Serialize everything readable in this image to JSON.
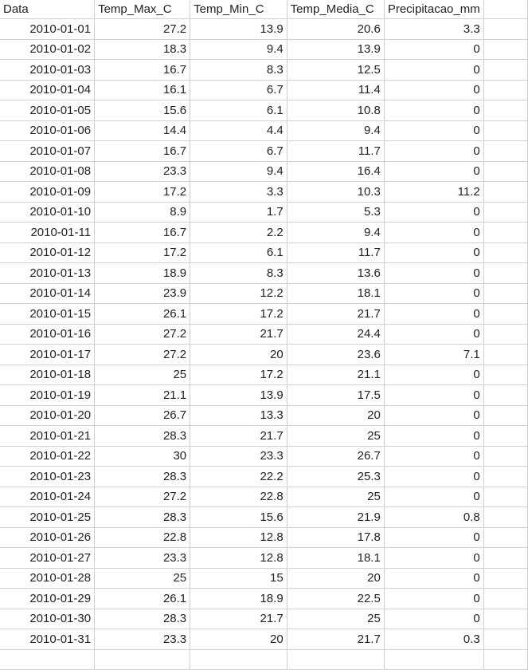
{
  "headers": [
    "Data",
    "Temp_Max_C",
    "Temp_Min_C",
    "Temp_Media_C",
    "Precipitacao_mm"
  ],
  "rows": [
    [
      "2010-01-01",
      "27.2",
      "13.9",
      "20.6",
      "3.3"
    ],
    [
      "2010-01-02",
      "18.3",
      "9.4",
      "13.9",
      "0"
    ],
    [
      "2010-01-03",
      "16.7",
      "8.3",
      "12.5",
      "0"
    ],
    [
      "2010-01-04",
      "16.1",
      "6.7",
      "11.4",
      "0"
    ],
    [
      "2010-01-05",
      "15.6",
      "6.1",
      "10.8",
      "0"
    ],
    [
      "2010-01-06",
      "14.4",
      "4.4",
      "9.4",
      "0"
    ],
    [
      "2010-01-07",
      "16.7",
      "6.7",
      "11.7",
      "0"
    ],
    [
      "2010-01-08",
      "23.3",
      "9.4",
      "16.4",
      "0"
    ],
    [
      "2010-01-09",
      "17.2",
      "3.3",
      "10.3",
      "11.2"
    ],
    [
      "2010-01-10",
      "8.9",
      "1.7",
      "5.3",
      "0"
    ],
    [
      "2010-01-11",
      "16.7",
      "2.2",
      "9.4",
      "0"
    ],
    [
      "2010-01-12",
      "17.2",
      "6.1",
      "11.7",
      "0"
    ],
    [
      "2010-01-13",
      "18.9",
      "8.3",
      "13.6",
      "0"
    ],
    [
      "2010-01-14",
      "23.9",
      "12.2",
      "18.1",
      "0"
    ],
    [
      "2010-01-15",
      "26.1",
      "17.2",
      "21.7",
      "0"
    ],
    [
      "2010-01-16",
      "27.2",
      "21.7",
      "24.4",
      "0"
    ],
    [
      "2010-01-17",
      "27.2",
      "20",
      "23.6",
      "7.1"
    ],
    [
      "2010-01-18",
      "25",
      "17.2",
      "21.1",
      "0"
    ],
    [
      "2010-01-19",
      "21.1",
      "13.9",
      "17.5",
      "0"
    ],
    [
      "2010-01-20",
      "26.7",
      "13.3",
      "20",
      "0"
    ],
    [
      "2010-01-21",
      "28.3",
      "21.7",
      "25",
      "0"
    ],
    [
      "2010-01-22",
      "30",
      "23.3",
      "26.7",
      "0"
    ],
    [
      "2010-01-23",
      "28.3",
      "22.2",
      "25.3",
      "0"
    ],
    [
      "2010-01-24",
      "27.2",
      "22.8",
      "25",
      "0"
    ],
    [
      "2010-01-25",
      "28.3",
      "15.6",
      "21.9",
      "0.8"
    ],
    [
      "2010-01-26",
      "22.8",
      "12.8",
      "17.8",
      "0"
    ],
    [
      "2010-01-27",
      "23.3",
      "12.8",
      "18.1",
      "0"
    ],
    [
      "2010-01-28",
      "25",
      "15",
      "20",
      "0"
    ],
    [
      "2010-01-29",
      "26.1",
      "18.9",
      "22.5",
      "0"
    ],
    [
      "2010-01-30",
      "28.3",
      "21.7",
      "25",
      "0"
    ],
    [
      "2010-01-31",
      "23.3",
      "20",
      "21.7",
      "0.3"
    ]
  ]
}
